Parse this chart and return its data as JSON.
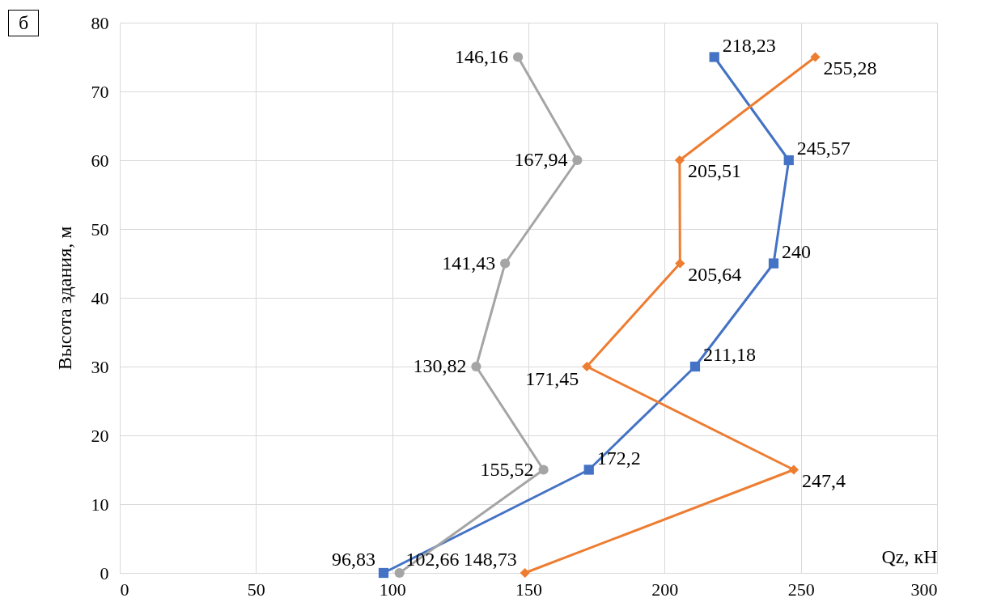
{
  "chart_data": {
    "type": "line",
    "orientation": "horizontal",
    "xlabel": "Qz, кН",
    "ylabel": "Высота здания, м",
    "annotations": [
      "б"
    ],
    "xlim": [
      0,
      300
    ],
    "xticks": [
      0,
      50,
      100,
      150,
      200,
      250,
      300
    ],
    "ylim": [
      0,
      80
    ],
    "yticks": [
      0,
      10,
      20,
      30,
      40,
      50,
      60,
      70,
      80
    ],
    "grid": true,
    "series": [
      {
        "color": "#4472c4",
        "marker": "square",
        "values": [
          96.83,
          172.2,
          211.18,
          240,
          245.57,
          218.23
        ],
        "x": [
          0,
          15,
          30,
          45,
          60,
          75
        ],
        "value_labels": [
          "96,83",
          "172,2",
          "211,18",
          "240",
          "245,57",
          "218,23"
        ]
      },
      {
        "color": "#a5a5a5",
        "marker": "circle",
        "values": [
          102.66,
          155.52,
          130.82,
          141.43,
          167.94,
          146.16
        ],
        "x": [
          0,
          15,
          30,
          45,
          60,
          75
        ],
        "value_labels": [
          "102,66",
          "155,52",
          "130,82",
          "141,43",
          "167,94",
          "146,16"
        ]
      },
      {
        "color": "#ed7d31",
        "marker": "diamond",
        "values": [
          148.73,
          247.4,
          171.45,
          205.64,
          205.51,
          255.28
        ],
        "x": [
          0,
          15,
          30,
          45,
          60,
          75
        ],
        "value_labels": [
          "148,73",
          "247,4",
          "171,45",
          "205,64",
          "205,51",
          "255,28"
        ]
      }
    ]
  }
}
